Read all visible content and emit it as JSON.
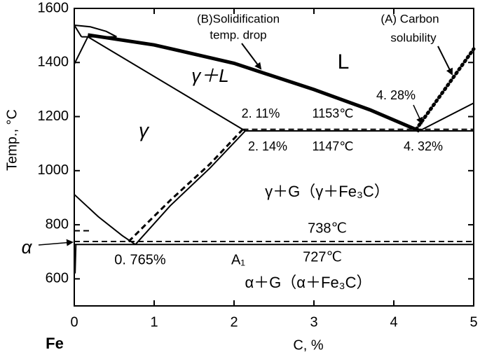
{
  "chart_data": {
    "type": "line",
    "xlabel": "C, %",
    "ylabel": "Temp., °C",
    "origin_label": "Fe",
    "xlim": [
      0,
      5
    ],
    "ylim": [
      500,
      1600
    ],
    "xticks": [
      0,
      1,
      2,
      3,
      4,
      5
    ],
    "yticks": [
      600,
      800,
      1000,
      1200,
      1400,
      1600
    ],
    "series": [
      {
        "color": "#000000",
        "style": "solid",
        "width": 5,
        "x": [
          0.17,
          1,
          2,
          3,
          3.7,
          4.32
        ],
        "values": [
          1502,
          1465,
          1397,
          1300,
          1225,
          1147
        ]
      },
      {
        "color": "#000000",
        "style": "solid",
        "width": 2,
        "x": [
          0,
          0.2,
          0.4,
          0.53
        ],
        "values": [
          1538,
          1532,
          1515,
          1495
        ]
      },
      {
        "color": "#000000",
        "style": "solid",
        "width": 2,
        "x": [
          0.09,
          0.53
        ],
        "values": [
          1495,
          1495
        ]
      },
      {
        "color": "#000000",
        "style": "solid",
        "width": 2,
        "x": [
          0,
          0.17
        ],
        "values": [
          1394,
          1495
        ]
      },
      {
        "color": "#000000",
        "style": "solid",
        "width": 2,
        "x": [
          0,
          0.09
        ],
        "values": [
          1538,
          1495
        ]
      },
      {
        "color": "#000000",
        "style": "solid",
        "width": 2,
        "x": [
          0.17,
          2.14
        ],
        "values": [
          1495,
          1147
        ]
      },
      {
        "color": "#000000",
        "style": "solid",
        "width": 2,
        "x": [
          2.14,
          5
        ],
        "values": [
          1147,
          1147
        ]
      },
      {
        "color": "#000000",
        "style": "dashed",
        "width": 2,
        "x": [
          2.11,
          5
        ],
        "values": [
          1153,
          1153
        ]
      },
      {
        "color": "#000000",
        "style": "solid",
        "width": 2,
        "x": [
          4.32,
          5
        ],
        "values": [
          1147,
          1250
        ]
      },
      {
        "color": "#000000",
        "style": "dotted",
        "width": 5,
        "x": [
          4.28,
          5
        ],
        "values": [
          1153,
          1450
        ]
      },
      {
        "color": "#000000",
        "style": "solid",
        "width": 2,
        "x": [
          0.765,
          1.2,
          1.7,
          2.14
        ],
        "values": [
          727,
          870,
          1010,
          1147
        ]
      },
      {
        "color": "#000000",
        "style": "dashed",
        "width": 3,
        "x": [
          0.68,
          1.2,
          1.7,
          2.11
        ],
        "values": [
          738,
          890,
          1025,
          1153
        ]
      },
      {
        "color": "#000000",
        "style": "solid",
        "width": 2,
        "x": [
          0,
          0.3,
          0.6,
          0.765
        ],
        "values": [
          912,
          830,
          760,
          727
        ]
      },
      {
        "color": "#000000",
        "style": "solid",
        "width": 2,
        "x": [
          0,
          5
        ],
        "values": [
          727,
          727
        ]
      },
      {
        "color": "#000000",
        "style": "dashed",
        "width": 2,
        "x": [
          0,
          5
        ],
        "values": [
          738,
          738
        ]
      },
      {
        "color": "#000000",
        "style": "dashed",
        "width": 2,
        "x": [
          0,
          0.2
        ],
        "values": [
          778,
          778
        ]
      },
      {
        "color": "#000000",
        "style": "solid",
        "width": 2,
        "x": [
          0.02,
          0.01
        ],
        "values": [
          727,
          620
        ]
      }
    ],
    "annotations": [
      "(B)Solidification",
      "temp. drop",
      "(A) Carbon",
      "solubility",
      "L",
      "γ＋L",
      "γ",
      "2. 11%",
      "1153℃",
      "2. 14%",
      "1147℃",
      "4. 28%",
      "4. 32%",
      "γ＋G（γ＋Fe₃C）",
      "738℃",
      "0. 765%",
      "A₁",
      "727℃",
      "α＋G（α＋Fe₃C）",
      "α"
    ]
  }
}
